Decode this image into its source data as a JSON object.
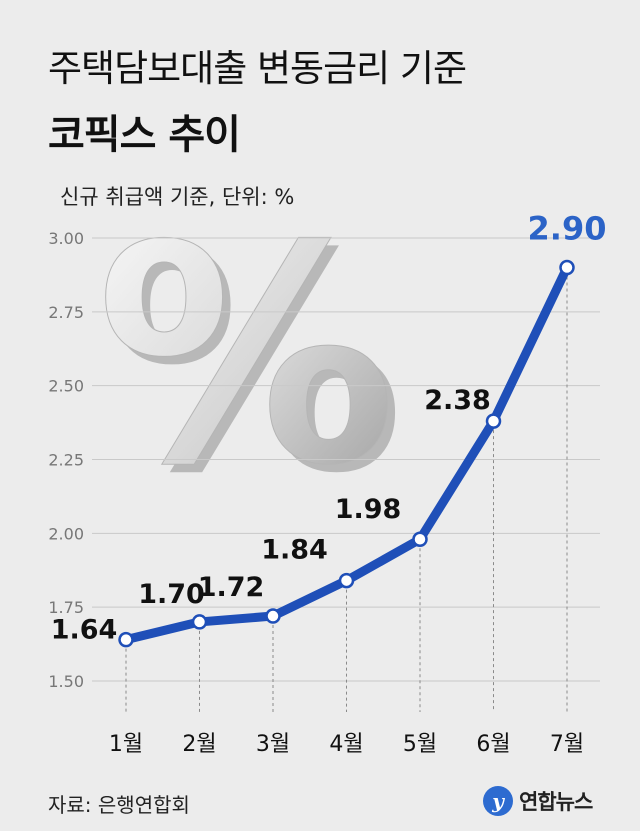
{
  "header": {
    "title_line1": "주택담보대출 변동금리 기준",
    "title_line2": "코픽스 추이",
    "subtitle": "신규 취급액 기준, 단위: %"
  },
  "chart_data": {
    "type": "line",
    "title": "주택담보대출 변동금리 기준 코픽스 추이",
    "subtitle": "신규 취급액 기준, 단위: %",
    "categories": [
      "1월",
      "2월",
      "3월",
      "4월",
      "5월",
      "6월",
      "7월"
    ],
    "values": [
      1.64,
      1.7,
      1.72,
      1.84,
      1.98,
      2.38,
      2.9
    ],
    "value_labels": [
      "1.64",
      "1.70",
      "1.72",
      "1.84",
      "1.98",
      "2.38",
      "2.90"
    ],
    "y_ticks": [
      "1.50",
      "1.75",
      "2.00",
      "2.25",
      "2.50",
      "2.75",
      "3.00"
    ],
    "ylim": [
      1.5,
      3.0
    ],
    "grid": true,
    "line_color": "#1f4fb8",
    "highlight_color": "#2b63c7",
    "decoration": "%"
  },
  "footer": {
    "source": "자료: 은행연합회",
    "logo_text": "연합뉴스",
    "logo_mark": "y"
  }
}
